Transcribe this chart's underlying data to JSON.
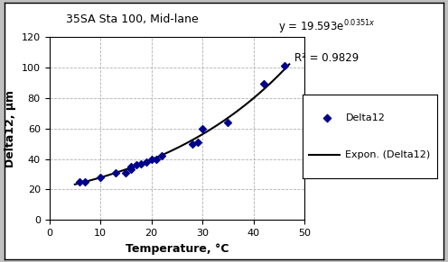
{
  "title": "35SA Sta 100, Mid-lane",
  "r_squared": "R² = 0.9829",
  "xlabel": "Temperature, °C",
  "ylabel": "Delta12, μm",
  "scatter_x": [
    6,
    7,
    10,
    13,
    15,
    16,
    16,
    17,
    18,
    19,
    20,
    21,
    22,
    28,
    29,
    30,
    35,
    42,
    46
  ],
  "scatter_y": [
    25,
    25,
    28,
    31,
    31,
    35,
    33,
    36,
    37,
    38,
    40,
    40,
    42,
    50,
    51,
    60,
    64,
    89,
    101
  ],
  "scatter_color": "#00008B",
  "line_color": "#000000",
  "fit_a": 19.593,
  "fit_b": 0.0351,
  "xlim": [
    0,
    50
  ],
  "ylim": [
    0,
    120
  ],
  "xticks": [
    0,
    10,
    20,
    30,
    40,
    50
  ],
  "yticks": [
    0,
    20,
    40,
    60,
    80,
    100,
    120
  ],
  "bg_color": "#c0c0c0",
  "plot_bg_color": "#ffffff",
  "grid_color": "#b0b0b0",
  "legend_label_scatter": "Delta12",
  "legend_label_line": "Expon. (Delta12)",
  "title_fontsize": 9,
  "axis_label_fontsize": 9,
  "tick_fontsize": 8,
  "eq_fontsize": 8.5,
  "fig_width": 4.96,
  "fig_height": 2.91,
  "fig_dpi": 100
}
